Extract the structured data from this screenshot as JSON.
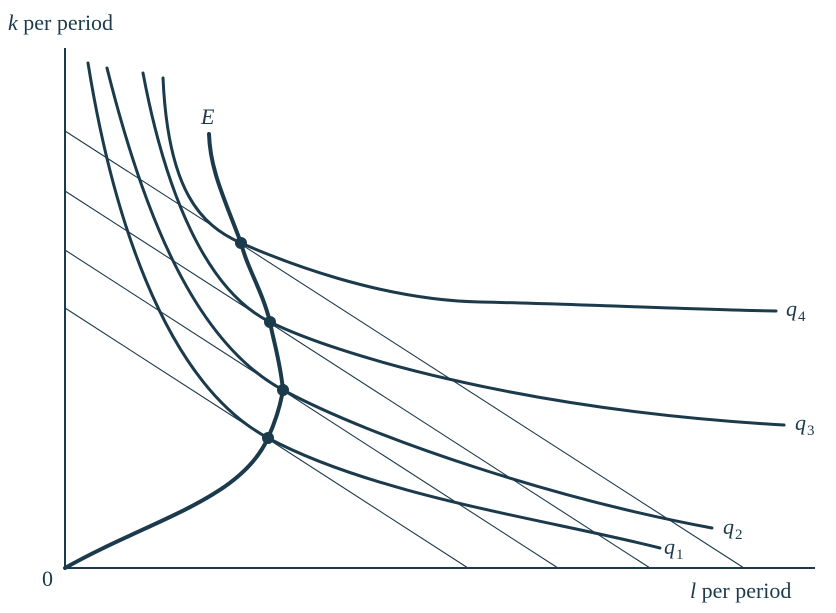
{
  "colors": {
    "ink": "#1b3a4b",
    "background": "#ffffff"
  },
  "labels": {
    "y_axis": {
      "var": "k",
      "rest": " per period"
    },
    "x_axis": {
      "var": "l",
      "rest": " per period"
    },
    "origin": "0",
    "expansion_path": "E",
    "isoquants": [
      {
        "base": "q",
        "sub": "1"
      },
      {
        "base": "q",
        "sub": "2"
      },
      {
        "base": "q",
        "sub": "3"
      },
      {
        "base": "q",
        "sub": "4"
      }
    ]
  }
}
